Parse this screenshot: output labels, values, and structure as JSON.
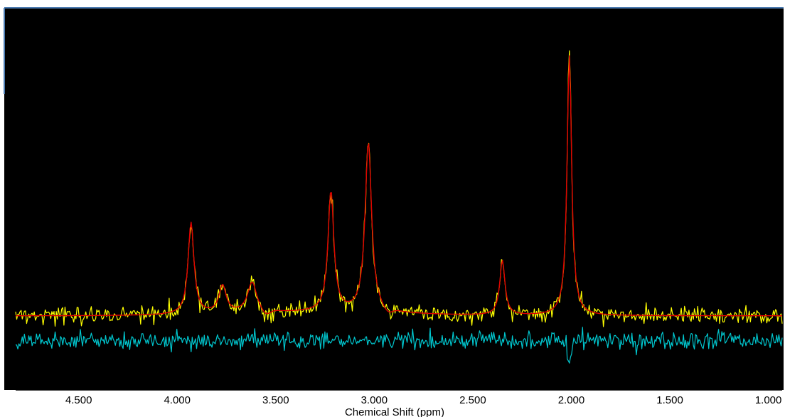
{
  "chart_data": {
    "type": "line",
    "title": "",
    "xlabel": "Chemical Shift (ppm)",
    "ylabel": "",
    "xlim": [
      4.82,
      0.93
    ],
    "x_reversed": true,
    "ylim": [
      -0.25,
      1.05
    ],
    "grid": false,
    "background": "#000000",
    "x_ticks": [
      4.5,
      4.0,
      3.5,
      3.0,
      2.5,
      2.0,
      1.5,
      1.0
    ],
    "x_tick_labels": [
      "4.500",
      "4.000",
      "3.500",
      "3.000",
      "2.500",
      "2.000",
      "1.500",
      "1.000"
    ],
    "minor_tick_step": 0.1,
    "series": [
      {
        "role": "measured",
        "color": "#ffff00"
      },
      {
        "role": "fit",
        "color": "#e00000"
      },
      {
        "role": "residual",
        "color": "#00c8d0"
      }
    ],
    "peaks": [
      {
        "x": 3.93,
        "height": 0.335
      },
      {
        "x": 3.77,
        "height": 0.1
      },
      {
        "x": 3.62,
        "height": 0.11
      },
      {
        "x": 3.22,
        "height": 0.44
      },
      {
        "x": 3.03,
        "height": 0.62
      },
      {
        "x": 2.35,
        "height": 0.2
      },
      {
        "x": 2.01,
        "height": 0.95
      }
    ],
    "fit_baseline": 0.0,
    "residual_offset": -0.09
  }
}
